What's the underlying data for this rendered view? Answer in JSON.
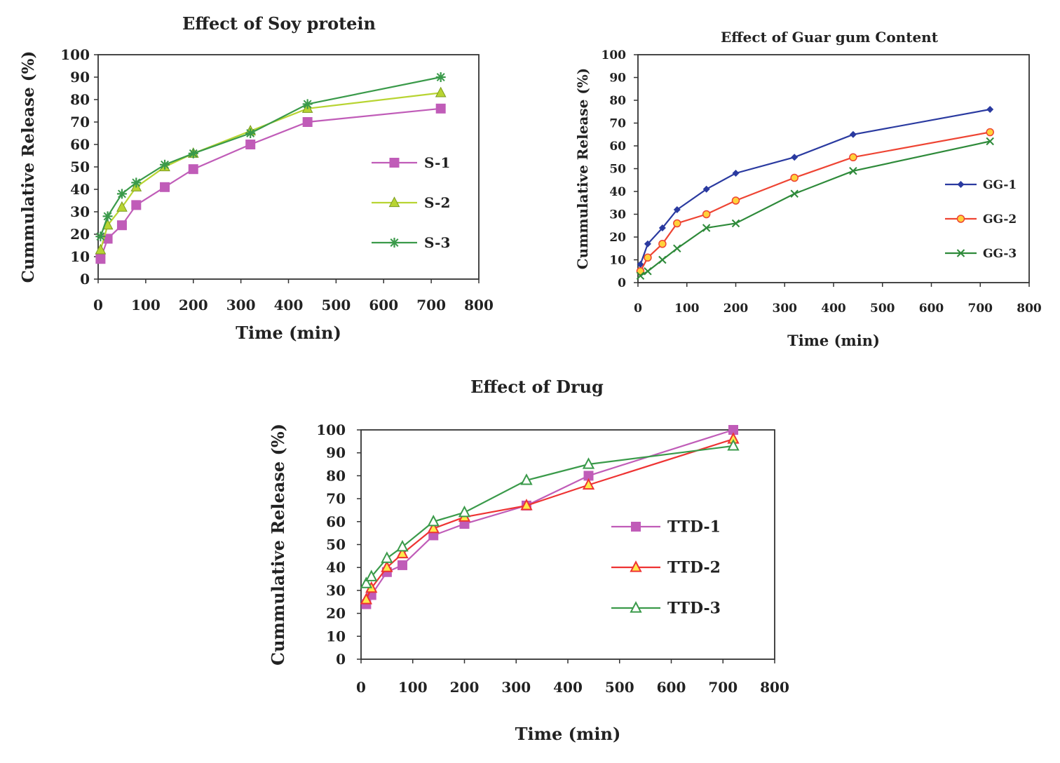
{
  "chart_data": [
    {
      "type": "line",
      "title": "Effect of Soy protein",
      "xlabel": "Time (min)",
      "ylabel": "Cummulative Release (%)",
      "xlim": [
        0,
        800
      ],
      "ylim": [
        0,
        100
      ],
      "xticks": [
        "0",
        "100",
        "200",
        "300",
        "400",
        "500",
        "600",
        "700",
        "800"
      ],
      "yticks": [
        "0",
        "10",
        "20",
        "30",
        "40",
        "50",
        "60",
        "70",
        "80",
        "90",
        "100"
      ],
      "grid": false,
      "legend": "right",
      "series": [
        {
          "name": "S-1",
          "color": "#c05cb8",
          "marker": "square",
          "x": [
            5,
            20,
            50,
            80,
            140,
            200,
            320,
            440,
            720
          ],
          "y": [
            9,
            18,
            24,
            33,
            41,
            49,
            60,
            70,
            76
          ]
        },
        {
          "name": "S-2",
          "color": "#b8d432",
          "marker": "triangle",
          "x": [
            5,
            20,
            50,
            80,
            140,
            200,
            320,
            440,
            720
          ],
          "y": [
            13,
            24,
            32,
            41,
            50,
            56,
            66,
            76,
            83
          ]
        },
        {
          "name": "S-3",
          "color": "#3a9a4a",
          "marker": "star",
          "x": [
            5,
            20,
            50,
            80,
            140,
            200,
            320,
            440,
            720
          ],
          "y": [
            19,
            28,
            38,
            43,
            51,
            56,
            65,
            78,
            90
          ]
        }
      ]
    },
    {
      "type": "line",
      "title": "Effect of Guar gum Content",
      "xlabel": "Time (min)",
      "ylabel": "Cummulative Release (%)",
      "xlim": [
        0,
        800
      ],
      "ylim": [
        0,
        100
      ],
      "xticks": [
        "0",
        "100",
        "200",
        "300",
        "400",
        "500",
        "600",
        "700",
        "800"
      ],
      "yticks": [
        "0",
        "10",
        "20",
        "30",
        "40",
        "50",
        "60",
        "70",
        "80",
        "90",
        "100"
      ],
      "grid": false,
      "legend": "right",
      "series": [
        {
          "name": "GG-1",
          "color": "#2a3aa0",
          "marker": "diamond",
          "x": [
            5,
            20,
            50,
            80,
            140,
            200,
            320,
            440,
            720
          ],
          "y": [
            8,
            17,
            24,
            32,
            41,
            48,
            55,
            65,
            76
          ]
        },
        {
          "name": "GG-2",
          "color": "#ee4433",
          "marker": "circle",
          "x": [
            5,
            20,
            50,
            80,
            140,
            200,
            320,
            440,
            720
          ],
          "y": [
            5,
            11,
            17,
            26,
            30,
            36,
            46,
            55,
            66
          ]
        },
        {
          "name": "GG-3",
          "color": "#2e8a3a",
          "marker": "x",
          "x": [
            5,
            20,
            50,
            80,
            140,
            200,
            320,
            440,
            720
          ],
          "y": [
            3,
            5,
            10,
            15,
            24,
            26,
            39,
            49,
            62
          ]
        }
      ]
    },
    {
      "type": "line",
      "title": "Effect of Drug",
      "xlabel": "Time (min)",
      "ylabel": "Cummulative Release (%)",
      "xlim": [
        0,
        800
      ],
      "ylim": [
        0,
        100
      ],
      "xticks": [
        "0",
        "100",
        "200",
        "300",
        "400",
        "500",
        "600",
        "700",
        "800"
      ],
      "yticks": [
        "0",
        "10",
        "20",
        "30",
        "40",
        "50",
        "60",
        "70",
        "80",
        "90",
        "100"
      ],
      "grid": false,
      "legend": "right",
      "series": [
        {
          "name": "TTD-1",
          "color": "#c05cb8",
          "marker": "square",
          "x": [
            10,
            20,
            50,
            80,
            140,
            200,
            320,
            440,
            720
          ],
          "y": [
            24,
            28,
            38,
            41,
            54,
            59,
            67,
            80,
            100
          ]
        },
        {
          "name": "TTD-2",
          "color": "#ee3333",
          "marker": "triangle-open-yellow",
          "x": [
            10,
            20,
            50,
            80,
            140,
            200,
            320,
            440,
            720
          ],
          "y": [
            26,
            31,
            40,
            46,
            57,
            62,
            67,
            76,
            96
          ]
        },
        {
          "name": "TTD-3",
          "color": "#3a9a4a",
          "marker": "triangle-open",
          "x": [
            10,
            20,
            50,
            80,
            140,
            200,
            320,
            440,
            720
          ],
          "y": [
            33,
            36,
            44,
            49,
            60,
            64,
            78,
            85,
            93
          ]
        }
      ]
    }
  ]
}
